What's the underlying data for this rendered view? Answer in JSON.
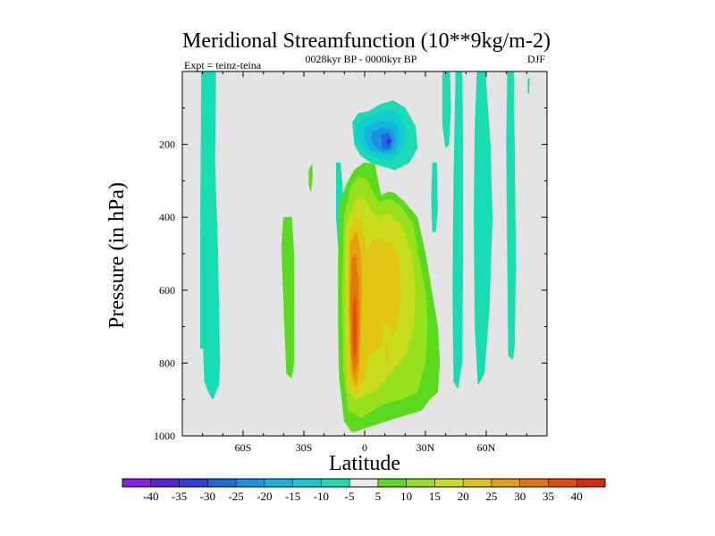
{
  "chart_data": {
    "type": "heatmap",
    "title": "Meridional Streamfunction (10**9kg/m-2)",
    "subtitle": "0028kyr BP - 0000kyr BP",
    "left_annotation": "Expt = teinz-teina",
    "right_annotation": "DJF",
    "xlabel": "Latitude",
    "ylabel": "Pressure (in hPa)",
    "xlim": [
      -90,
      90
    ],
    "ylim": [
      1000,
      0
    ],
    "x_ticks": [
      {
        "value": -60,
        "label": "60S"
      },
      {
        "value": -30,
        "label": "30S"
      },
      {
        "value": 0,
        "label": "0"
      },
      {
        "value": 30,
        "label": "30N"
      },
      {
        "value": 60,
        "label": "60N"
      }
    ],
    "y_ticks": [
      {
        "value": 200,
        "label": "200"
      },
      {
        "value": 400,
        "label": "400"
      },
      {
        "value": 600,
        "label": "600"
      },
      {
        "value": 800,
        "label": "800"
      },
      {
        "value": 1000,
        "label": "1000"
      }
    ],
    "missing_color": "#e4e4e4",
    "colorbar": {
      "labels": [
        "-40",
        "-35",
        "-30",
        "-25",
        "-20",
        "-15",
        "-10",
        "-5",
        "5",
        "10",
        "15",
        "20",
        "25",
        "30",
        "35",
        "40"
      ],
      "colors": [
        "#8a1ee8",
        "#5a22d8",
        "#2e3ee0",
        "#1e68e0",
        "#1a93e2",
        "#14b4e0",
        "#10ccd2",
        "#18dcb2",
        "#ececec",
        "#5ada1c",
        "#96e01e",
        "#c8dc1a",
        "#e2c412",
        "#e69e0c",
        "#e6760a",
        "#e44c08",
        "#dc2a08"
      ]
    },
    "regions": [
      {
        "name": "sh-high-lat-band",
        "level": -5,
        "points": [
          [
            -80.5,
            0
          ],
          [
            -73.5,
            0
          ],
          [
            -74,
            250
          ],
          [
            -72.5,
            500
          ],
          [
            -71.5,
            800
          ],
          [
            -72,
            860
          ],
          [
            -75,
            900
          ],
          [
            -77,
            880
          ],
          [
            -79,
            850
          ],
          [
            -80,
            700
          ],
          [
            -81,
            400
          ]
        ]
      },
      {
        "name": "sh-thin-streak",
        "level": -5,
        "points": [
          [
            -81,
            430
          ],
          [
            -80,
            430
          ],
          [
            -79.5,
            700
          ],
          [
            -80,
            760
          ],
          [
            -81,
            760
          ]
        ]
      },
      {
        "name": "sh-mid-lat-band",
        "level": 5,
        "points": [
          [
            -40,
            400
          ],
          [
            -36,
            400
          ],
          [
            -35,
            500
          ],
          [
            -35,
            800
          ],
          [
            -36,
            840
          ],
          [
            -38.5,
            830
          ],
          [
            -39.5,
            700
          ],
          [
            -41,
            480
          ]
        ]
      },
      {
        "name": "small-upper-cell",
        "level": 5,
        "points": [
          [
            -27.5,
            270
          ],
          [
            -26,
            255
          ],
          [
            -25.8,
            290
          ],
          [
            -26.5,
            330
          ],
          [
            -27.5,
            310
          ]
        ]
      },
      {
        "name": "sh-subtropical-band",
        "level": -5,
        "points": [
          [
            -14,
            250
          ],
          [
            -12,
            250
          ],
          [
            -10.5,
            350
          ],
          [
            -11,
            480
          ],
          [
            -13,
            480
          ],
          [
            -14,
            400
          ]
        ]
      },
      {
        "name": "hadley-cell-5",
        "level": 5,
        "points": [
          [
            -12,
            360
          ],
          [
            -9,
            310
          ],
          [
            -5,
            270
          ],
          [
            0,
            250
          ],
          [
            5,
            255
          ],
          [
            8,
            340
          ],
          [
            12,
            330
          ],
          [
            15,
            335
          ],
          [
            20,
            360
          ],
          [
            26,
            400
          ],
          [
            30,
            500
          ],
          [
            33,
            600
          ],
          [
            36,
            700
          ],
          [
            37,
            800
          ],
          [
            36,
            880
          ],
          [
            32,
            900
          ],
          [
            28,
            930
          ],
          [
            22,
            940
          ],
          [
            10,
            960
          ],
          [
            2,
            975
          ],
          [
            -6,
            990
          ],
          [
            -10,
            960
          ],
          [
            -12.5,
            840
          ],
          [
            -13,
            700
          ],
          [
            -13,
            500
          ]
        ]
      },
      {
        "name": "hadley-cell-10",
        "level": 10,
        "points": [
          [
            -10,
            400
          ],
          [
            -7,
            320
          ],
          [
            -3,
            290
          ],
          [
            1,
            295
          ],
          [
            4,
            330
          ],
          [
            7,
            360
          ],
          [
            12,
            350
          ],
          [
            18,
            370
          ],
          [
            24,
            420
          ],
          [
            27,
            520
          ],
          [
            30,
            600
          ],
          [
            31,
            700
          ],
          [
            30,
            800
          ],
          [
            26,
            880
          ],
          [
            18,
            900
          ],
          [
            10,
            910
          ],
          [
            4,
            930
          ],
          [
            -2,
            950
          ],
          [
            -8,
            930
          ],
          [
            -10.5,
            820
          ],
          [
            -11,
            600
          ]
        ]
      },
      {
        "name": "hadley-cell-15",
        "level": 15,
        "points": [
          [
            -9,
            420
          ],
          [
            -5,
            360
          ],
          [
            -1,
            340
          ],
          [
            3,
            380
          ],
          [
            7,
            400
          ],
          [
            12,
            390
          ],
          [
            18,
            420
          ],
          [
            23,
            500
          ],
          [
            25,
            600
          ],
          [
            24,
            700
          ],
          [
            20,
            780
          ],
          [
            14,
            820
          ],
          [
            6,
            870
          ],
          [
            0,
            890
          ],
          [
            -5,
            900
          ],
          [
            -8.5,
            870
          ],
          [
            -9.5,
            700
          ],
          [
            -9.5,
            550
          ]
        ]
      },
      {
        "name": "hadley-cell-20",
        "level": 20,
        "points": [
          [
            -8,
            440
          ],
          [
            -4,
            400
          ],
          [
            -1,
            420
          ],
          [
            1,
            500
          ],
          [
            4,
            460
          ],
          [
            8,
            460
          ],
          [
            13,
            470
          ],
          [
            17,
            520
          ],
          [
            18,
            620
          ],
          [
            16,
            700
          ],
          [
            12,
            740
          ],
          [
            6,
            760
          ],
          [
            2,
            780
          ],
          [
            0,
            840
          ],
          [
            -4,
            880
          ],
          [
            -7.5,
            850
          ],
          [
            -8.5,
            650
          ]
        ]
      },
      {
        "name": "hadley-cell-25",
        "level": 25,
        "points": [
          [
            -7,
            470
          ],
          [
            -4,
            440
          ],
          [
            -2,
            500
          ],
          [
            -1.5,
            600
          ],
          [
            -2,
            700
          ],
          [
            -2.5,
            800
          ],
          [
            -4,
            860
          ],
          [
            -6.5,
            830
          ],
          [
            -7.5,
            650
          ]
        ]
      },
      {
        "name": "hadley-cell-30",
        "level": 30,
        "points": [
          [
            -6.5,
            520
          ],
          [
            -4.5,
            500
          ],
          [
            -3,
            580
          ],
          [
            -3,
            700
          ],
          [
            -3.5,
            800
          ],
          [
            -5,
            830
          ],
          [
            -6.5,
            780
          ],
          [
            -7,
            650
          ]
        ]
      },
      {
        "name": "hadley-cell-35",
        "level": 35,
        "points": [
          [
            -5.5,
            640
          ],
          [
            -4.5,
            610
          ],
          [
            -4,
            700
          ],
          [
            -4.5,
            780
          ],
          [
            -5.5,
            770
          ],
          [
            -5.8,
            700
          ]
        ]
      },
      {
        "name": "secondary-cell-15",
        "level": 15,
        "points": [
          [
            9,
            700
          ],
          [
            12,
            690
          ],
          [
            13,
            760
          ],
          [
            11,
            820
          ],
          [
            9,
            800
          ]
        ]
      },
      {
        "name": "secondary-cell-20",
        "level": 20,
        "points": [
          [
            10,
            740
          ],
          [
            11.5,
            740
          ],
          [
            11.5,
            790
          ],
          [
            10.5,
            800
          ]
        ]
      },
      {
        "name": "upper-cell-m5",
        "level": -5,
        "points": [
          [
            -6,
            140
          ],
          [
            -3,
            115
          ],
          [
            2,
            110
          ],
          [
            8,
            90
          ],
          [
            14,
            80
          ],
          [
            20,
            100
          ],
          [
            25,
            150
          ],
          [
            26,
            210
          ],
          [
            22,
            250
          ],
          [
            15,
            270
          ],
          [
            9,
            260
          ],
          [
            3,
            250
          ],
          [
            -2,
            230
          ],
          [
            -5,
            200
          ]
        ]
      },
      {
        "name": "upper-cell-m10",
        "level": -10,
        "points": [
          [
            -4,
            150
          ],
          [
            0,
            130
          ],
          [
            6,
            115
          ],
          [
            12,
            105
          ],
          [
            17,
            120
          ],
          [
            20,
            160
          ],
          [
            19,
            210
          ],
          [
            14,
            240
          ],
          [
            7,
            240
          ],
          [
            2,
            225
          ],
          [
            -2,
            200
          ],
          [
            -4,
            180
          ]
        ]
      },
      {
        "name": "upper-cell-m15",
        "level": -15,
        "points": [
          [
            0,
            155
          ],
          [
            6,
            140
          ],
          [
            12,
            135
          ],
          [
            16,
            150
          ],
          [
            17,
            195
          ],
          [
            14,
            225
          ],
          [
            8,
            225
          ],
          [
            3,
            215
          ],
          [
            0,
            190
          ]
        ]
      },
      {
        "name": "upper-cell-m20",
        "level": -20,
        "points": [
          [
            4,
            165
          ],
          [
            9,
            155
          ],
          [
            13,
            160
          ],
          [
            15,
            185
          ],
          [
            13,
            215
          ],
          [
            9,
            220
          ],
          [
            5,
            205
          ],
          [
            3,
            185
          ]
        ]
      },
      {
        "name": "upper-cell-m25",
        "level": -25,
        "points": [
          [
            8,
            175
          ],
          [
            11.5,
            170
          ],
          [
            13.5,
            190
          ],
          [
            12,
            212
          ],
          [
            9,
            210
          ]
        ]
      },
      {
        "name": "upper-cell-m30",
        "level": -30,
        "points": [
          [
            10.5,
            186
          ],
          [
            12.5,
            184
          ],
          [
            13,
            196
          ],
          [
            11,
            202
          ]
        ]
      },
      {
        "name": "upper-cell-m35",
        "level": -35,
        "points": [
          [
            11.2,
            192
          ],
          [
            12.8,
            190
          ],
          [
            12.5,
            196
          ]
        ]
      },
      {
        "name": "nh-upper-mid-band",
        "level": -5,
        "points": [
          [
            33.5,
            250
          ],
          [
            35.5,
            250
          ],
          [
            36,
            380
          ],
          [
            35,
            440
          ],
          [
            33.5,
            440
          ],
          [
            33,
            350
          ]
        ]
      },
      {
        "name": "nh-upper-col",
        "level": -5,
        "points": [
          [
            38.5,
            0
          ],
          [
            42,
            0
          ],
          [
            42.5,
            100
          ],
          [
            41.5,
            200
          ],
          [
            40,
            210
          ],
          [
            38.5,
            150
          ]
        ]
      },
      {
        "name": "nh-mid-lat-band",
        "level": -5,
        "points": [
          [
            45,
            0
          ],
          [
            48,
            0
          ],
          [
            48.5,
            200
          ],
          [
            48.5,
            500
          ],
          [
            48,
            800
          ],
          [
            46,
            870
          ],
          [
            44,
            850
          ],
          [
            43.5,
            600
          ],
          [
            44,
            300
          ]
        ]
      },
      {
        "name": "nh-band-60",
        "level": -5,
        "points": [
          [
            55.5,
            0
          ],
          [
            59.5,
            0
          ],
          [
            62,
            200
          ],
          [
            63,
            400
          ],
          [
            61.5,
            650
          ],
          [
            59,
            830
          ],
          [
            56,
            860
          ],
          [
            54.5,
            700
          ],
          [
            54,
            400
          ],
          [
            54.5,
            150
          ]
        ]
      },
      {
        "name": "nh-band-70",
        "level": -5,
        "points": [
          [
            70.5,
            0
          ],
          [
            73.5,
            0
          ],
          [
            74,
            250
          ],
          [
            74.5,
            500
          ],
          [
            74,
            750
          ],
          [
            73,
            790
          ],
          [
            71,
            780
          ],
          [
            70.5,
            500
          ],
          [
            70,
            200
          ]
        ]
      },
      {
        "name": "nh-polar-streak",
        "level": -5,
        "points": [
          [
            80.5,
            20
          ],
          [
            81.3,
            20
          ],
          [
            81.1,
            60
          ],
          [
            80.7,
            60
          ]
        ]
      }
    ]
  }
}
